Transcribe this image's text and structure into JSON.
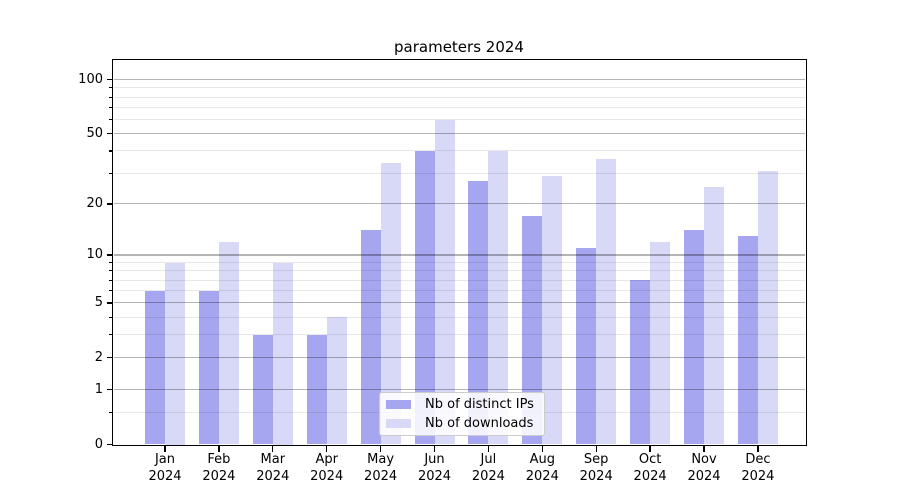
{
  "title": "parameters 2024",
  "chart_data": {
    "type": "bar",
    "title": "parameters 2024",
    "categories": [
      "Jan 2024",
      "Feb 2024",
      "Mar 2024",
      "Apr 2024",
      "May 2024",
      "Jun 2024",
      "Jul 2024",
      "Aug 2024",
      "Sep 2024",
      "Oct 2024",
      "Nov 2024",
      "Dec 2024"
    ],
    "series": [
      {
        "name": "Nb of distinct IPs",
        "color": "#a5a5f0",
        "values": [
          6,
          6,
          3,
          3,
          14,
          40,
          27,
          17,
          11,
          7,
          14,
          13
        ]
      },
      {
        "name": "Nb of downloads",
        "color": "#d8d8f7",
        "values": [
          9,
          12,
          9,
          4,
          34,
          60,
          40,
          29,
          36,
          12,
          25,
          31
        ]
      }
    ],
    "y_scale": "log10(1+value)",
    "y_major_ticks": [
      0,
      1,
      2,
      5,
      10,
      20,
      50,
      100
    ],
    "y_minor_ticks": [
      0.5,
      3,
      4,
      6,
      7,
      8,
      9,
      30,
      40,
      60,
      70,
      80,
      90
    ],
    "ylim": [
      0,
      128
    ],
    "xlabel": "",
    "ylabel": "",
    "grid": true,
    "legend_position": "lower center"
  },
  "colors": {
    "background": "#ffffff",
    "spine": "#000000",
    "text": "#000000",
    "grid_major": "rgba(0,0,0,0.29)",
    "grid_minor": "rgba(0,0,0,0.09)",
    "legend_border": "#cccccc",
    "legend_background": "rgba(255,255,255,0.85)"
  }
}
